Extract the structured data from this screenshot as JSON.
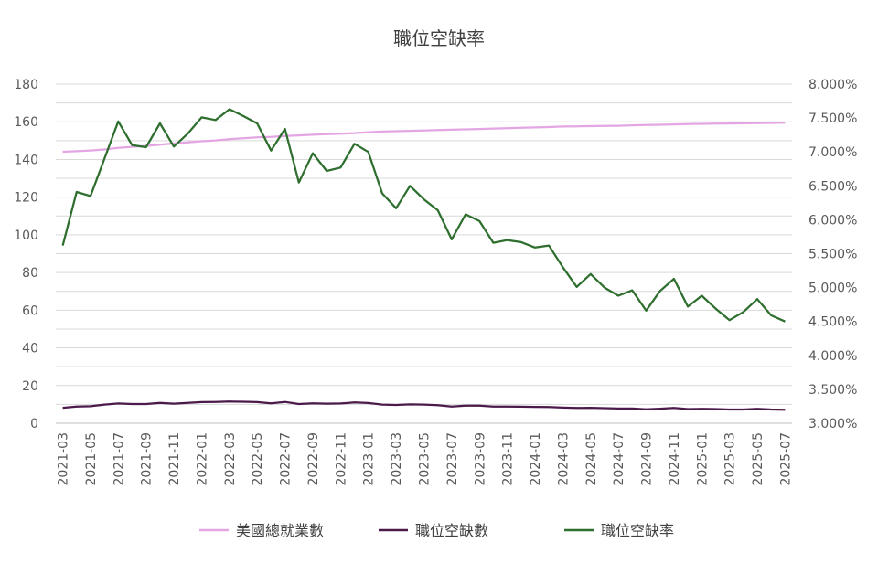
{
  "chart_data": {
    "type": "line",
    "title": "職位空缺率",
    "x": [
      "2021-03",
      "2021-04",
      "2021-05",
      "2021-06",
      "2021-07",
      "2021-08",
      "2021-09",
      "2021-10",
      "2021-11",
      "2021-12",
      "2022-01",
      "2022-02",
      "2022-03",
      "2022-04",
      "2022-05",
      "2022-06",
      "2022-07",
      "2022-08",
      "2022-09",
      "2022-10",
      "2022-11",
      "2022-12",
      "2023-01",
      "2023-02",
      "2023-03",
      "2023-04",
      "2023-05",
      "2023-06",
      "2023-07",
      "2023-08",
      "2023-09",
      "2023-10",
      "2023-11",
      "2023-12",
      "2024-01",
      "2024-02",
      "2024-03",
      "2024-04",
      "2024-05",
      "2024-06",
      "2024-07",
      "2024-08",
      "2024-09",
      "2024-10",
      "2024-11",
      "2024-12",
      "2025-01",
      "2025-02",
      "2025-03",
      "2025-04",
      "2025-05",
      "2025-06",
      "2025-07"
    ],
    "xticks": [
      "2021-03",
      "2021-05",
      "2021-07",
      "2021-09",
      "2021-11",
      "2022-01",
      "2022-03",
      "2022-05",
      "2022-07",
      "2022-09",
      "2022-11",
      "2023-01",
      "2023-03",
      "2023-05",
      "2023-07",
      "2023-09",
      "2023-11",
      "2024-01",
      "2024-03",
      "2024-05",
      "2024-07",
      "2024-09",
      "2024-11",
      "2025-01",
      "2025-03",
      "2025-05",
      "2025-07"
    ],
    "y_left": {
      "ylim": [
        0,
        180
      ],
      "ticks": [
        "0",
        "20",
        "40",
        "60",
        "80",
        "100",
        "120",
        "140",
        "160",
        "180"
      ]
    },
    "y_right": {
      "ylim": [
        3.0,
        8.0
      ],
      "ticks": [
        "3.000%",
        "3.500%",
        "4.000%",
        "4.500%",
        "5.000%",
        "5.500%",
        "6.000%",
        "6.500%",
        "7.000%",
        "7.500%",
        "8.000%"
      ]
    },
    "grid": true,
    "legend_position": "bottom",
    "series": [
      {
        "name": "美國總就業數",
        "axis": "left",
        "color": "#e3a6e3",
        "values": [
          144.1,
          144.4,
          144.8,
          145.3,
          146.2,
          146.7,
          147.2,
          147.9,
          148.5,
          149.1,
          149.7,
          150.1,
          150.8,
          151.3,
          151.7,
          152.0,
          152.5,
          152.8,
          153.1,
          153.4,
          153.7,
          154.0,
          154.5,
          154.8,
          155.0,
          155.2,
          155.4,
          155.6,
          155.8,
          156.0,
          156.2,
          156.4,
          156.6,
          156.8,
          157.0,
          157.2,
          157.5,
          157.6,
          157.7,
          157.8,
          157.9,
          158.1,
          158.3,
          158.4,
          158.6,
          158.8,
          158.9,
          159.0,
          159.1,
          159.2,
          159.3,
          159.4,
          159.5
        ]
      },
      {
        "name": "職位空缺數",
        "axis": "left",
        "color": "#4b1a4b",
        "values": [
          8.2,
          8.9,
          9.0,
          9.9,
          10.5,
          10.2,
          10.2,
          10.8,
          10.4,
          10.8,
          11.2,
          11.3,
          11.5,
          11.4,
          11.2,
          10.6,
          11.3,
          10.2,
          10.6,
          10.4,
          10.5,
          11.0,
          10.7,
          9.9,
          9.7,
          10.0,
          9.9,
          9.6,
          8.9,
          9.3,
          9.3,
          8.9,
          8.9,
          8.8,
          8.7,
          8.6,
          8.3,
          8.1,
          8.2,
          8.0,
          7.8,
          7.8,
          7.4,
          7.7,
          8.1,
          7.5,
          7.6,
          7.5,
          7.3,
          7.3,
          7.6,
          7.3,
          7.2
        ]
      },
      {
        "name": "職位空缺率",
        "axis": "right",
        "color": "#2e6e2e",
        "values": [
          5.62,
          6.41,
          6.35,
          6.9,
          7.45,
          7.1,
          7.07,
          7.42,
          7.08,
          7.27,
          7.51,
          7.47,
          7.63,
          7.53,
          7.42,
          7.02,
          7.34,
          6.55,
          6.98,
          6.72,
          6.77,
          7.12,
          7.0,
          6.39,
          6.17,
          6.5,
          6.3,
          6.14,
          5.71,
          6.08,
          5.98,
          5.66,
          5.7,
          5.67,
          5.59,
          5.62,
          5.3,
          5.01,
          5.2,
          5.0,
          4.88,
          4.96,
          4.66,
          4.95,
          5.13,
          4.72,
          4.88,
          4.69,
          4.52,
          4.64,
          4.83,
          4.59,
          4.5
        ]
      }
    ]
  }
}
